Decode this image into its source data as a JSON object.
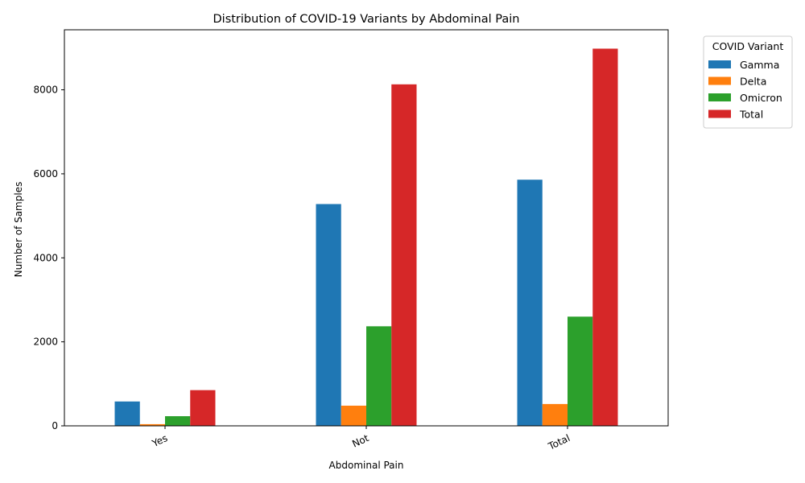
{
  "chart_data": {
    "type": "bar",
    "title": "Distribution of COVID-19 Variants by Abdominal Pain",
    "xlabel": "Abdominal Pain",
    "ylabel": "Number of Samples",
    "categories": [
      "Yes",
      "Not",
      "Total"
    ],
    "series": [
      {
        "name": "Gamma",
        "color": "#1f77b4",
        "values": [
          580,
          5280,
          5860
        ]
      },
      {
        "name": "Delta",
        "color": "#ff7f0e",
        "values": [
          40,
          480,
          520
        ]
      },
      {
        "name": "Omicron",
        "color": "#2ca02c",
        "values": [
          230,
          2370,
          2600
        ]
      },
      {
        "name": "Total",
        "color": "#d62728",
        "values": [
          850,
          8130,
          8980
        ]
      }
    ],
    "ylim": [
      0,
      9429
    ],
    "yticks": [
      0,
      2000,
      4000,
      6000,
      8000
    ],
    "grid": false,
    "legend": {
      "title": "COVID Variant",
      "position": "outside-top-right"
    }
  }
}
